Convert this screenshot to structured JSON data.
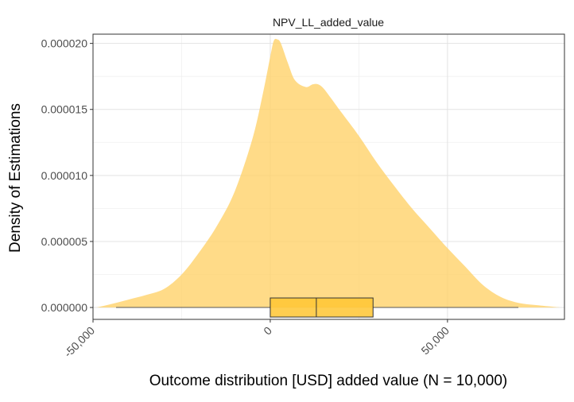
{
  "chart_data": {
    "type": "area",
    "title": "NPV_LL_added_value",
    "xlabel": "Outcome distribution [USD] added value (N = 10,000)",
    "ylabel": "Density of Estimations",
    "xlim": [
      -50000,
      83000
    ],
    "ylim": [
      -9e-07,
      2.07e-05
    ],
    "x_ticks": [
      {
        "value": -50000,
        "label": "-50,000"
      },
      {
        "value": 0,
        "label": "0"
      },
      {
        "value": 50000,
        "label": "50,000"
      }
    ],
    "y_ticks": [
      {
        "value": 0.0,
        "label": "0.000000"
      },
      {
        "value": 5e-06,
        "label": "0.000005"
      },
      {
        "value": 1e-05,
        "label": "0.000010"
      },
      {
        "value": 1.5e-05,
        "label": "0.000015"
      },
      {
        "value": 2e-05,
        "label": "0.000020"
      }
    ],
    "grid": true,
    "density": {
      "fill_color": "#FFD166",
      "fill_opacity": 0.78,
      "x": [
        -49000,
        -45000,
        -40000,
        -35000,
        -30000,
        -25000,
        -20000,
        -15000,
        -10000,
        -5000,
        -2000,
        0,
        1000,
        2000,
        3000,
        5000,
        7000,
        10000,
        12000,
        13500,
        15000,
        17000,
        20000,
        25000,
        30000,
        35000,
        40000,
        45000,
        50000,
        55000,
        60000,
        65000,
        70000,
        75000,
        80000,
        82000
      ],
      "y": [
        0.0,
        2.5e-07,
        6e-07,
        9.5e-07,
        1.4e-06,
        2.5e-06,
        4.2e-06,
        6.2e-06,
        8.8e-06,
        1.28e-05,
        1.63e-05,
        1.9e-05,
        2.02e-05,
        2.03e-05,
        2e-05,
        1.85e-05,
        1.72e-05,
        1.67e-05,
        1.69e-05,
        1.69e-05,
        1.66e-05,
        1.59e-05,
        1.48e-05,
        1.3e-05,
        1.1e-05,
        9.2e-06,
        7.5e-06,
        6e-06,
        4.5e-06,
        3.1e-06,
        1.7e-06,
        8e-07,
        3.5e-07,
        1.8e-07,
        5e-08,
        0.0
      ]
    },
    "boxplot": {
      "whisker_low": -43500,
      "q1": 0,
      "median": 13000,
      "q3": 29000,
      "whisker_high": 70000,
      "fill_color": "#FFC533"
    }
  }
}
